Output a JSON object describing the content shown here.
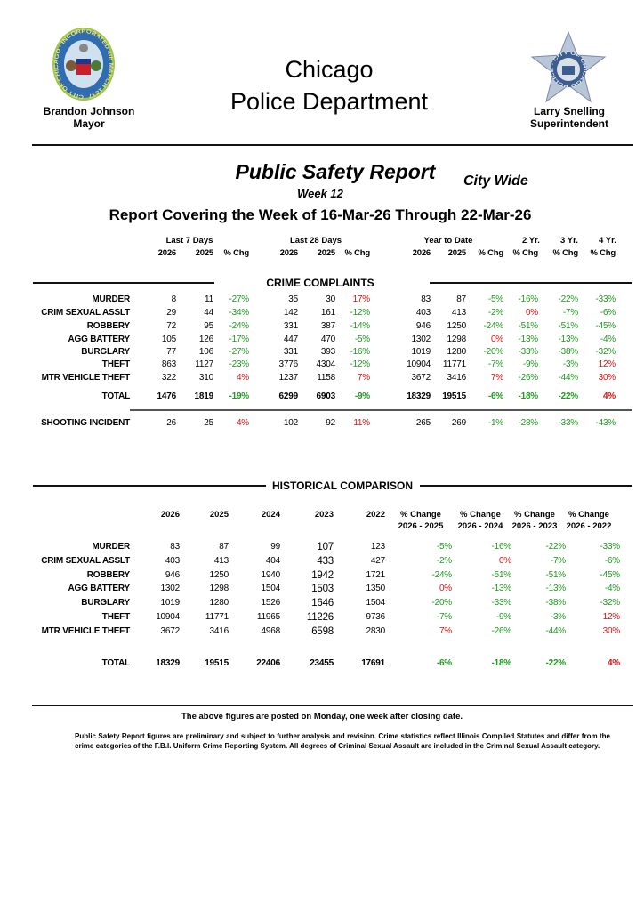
{
  "header": {
    "title_line1": "Chicago",
    "title_line2": "Police Department",
    "mayor_name": "Brandon Johnson",
    "mayor_title": "Mayor",
    "supt_name": "Larry Snelling",
    "supt_title": "Superintendent",
    "city_seal_text": "CITY OF CHICAGO · INCORPORATED 4th MARCH 1837",
    "star_text": "POLICE · CITY OF CHICAGO"
  },
  "report": {
    "title": "Public Safety Report",
    "scope": "City Wide",
    "week": "Week 12",
    "covering": "Report Covering the Week of 16-Mar-26 Through 22-Mar-26"
  },
  "colors": {
    "decrease": "#1e9a1e",
    "increase": "#e01010"
  },
  "complaints": {
    "group_headers": [
      "Last 7 Days",
      "Last 28 Days",
      "Year to Date",
      "2 Yr.",
      "3 Yr.",
      "4 Yr."
    ],
    "col_headers": [
      "2026",
      "2025",
      "% Chg",
      "2026",
      "2025",
      "% Chg",
      "2026",
      "2025",
      "% Chg",
      "% Chg",
      "% Chg",
      "% Chg"
    ],
    "section_title": "CRIME COMPLAINTS",
    "rows": [
      {
        "label": "MURDER",
        "values": [
          "8",
          "11",
          "-27%",
          "35",
          "30",
          "17%",
          "83",
          "87",
          "-5%",
          "-16%",
          "-22%",
          "-33%"
        ]
      },
      {
        "label": "CRIM SEXUAL ASSLT",
        "values": [
          "29",
          "44",
          "-34%",
          "142",
          "161",
          "-12%",
          "403",
          "413",
          "-2%",
          "0%",
          "-7%",
          "-6%"
        ]
      },
      {
        "label": "ROBBERY",
        "values": [
          "72",
          "95",
          "-24%",
          "331",
          "387",
          "-14%",
          "946",
          "1250",
          "-24%",
          "-51%",
          "-51%",
          "-45%"
        ]
      },
      {
        "label": "AGG BATTERY",
        "values": [
          "105",
          "126",
          "-17%",
          "447",
          "470",
          "-5%",
          "1302",
          "1298",
          "0%",
          "-13%",
          "-13%",
          "-4%"
        ]
      },
      {
        "label": "BURGLARY",
        "values": [
          "77",
          "106",
          "-27%",
          "331",
          "393",
          "-16%",
          "1019",
          "1280",
          "-20%",
          "-33%",
          "-38%",
          "-32%"
        ]
      },
      {
        "label": "THEFT",
        "values": [
          "863",
          "1127",
          "-23%",
          "3776",
          "4304",
          "-12%",
          "10904",
          "11771",
          "-7%",
          "-9%",
          "-3%",
          "12%"
        ]
      },
      {
        "label": "MTR VEHICLE THEFT",
        "values": [
          "322",
          "310",
          "4%",
          "1237",
          "1158",
          "7%",
          "3672",
          "3416",
          "7%",
          "-26%",
          "-44%",
          "30%"
        ]
      }
    ],
    "total": {
      "label": "TOTAL",
      "values": [
        "1476",
        "1819",
        "-19%",
        "6299",
        "6903",
        "-9%",
        "18329",
        "19515",
        "-6%",
        "-18%",
        "-22%",
        "4%"
      ]
    },
    "shooting": {
      "label": "SHOOTING INCIDENT",
      "values": [
        "26",
        "25",
        "4%",
        "102",
        "92",
        "11%",
        "265",
        "269",
        "-1%",
        "-28%",
        "-33%",
        "-43%"
      ]
    }
  },
  "historical": {
    "section_title": "HISTORICAL COMPARISON",
    "col_headers": [
      [
        "2026"
      ],
      [
        "2025"
      ],
      [
        "2024"
      ],
      [
        "2023"
      ],
      [
        "2022"
      ],
      [
        "% Change",
        "2026 - 2025"
      ],
      [
        "% Change",
        "2026 - 2024"
      ],
      [
        "% Change",
        "2026 - 2023"
      ],
      [
        "% Change",
        "2026 - 2022"
      ]
    ],
    "rows": [
      {
        "label": "MURDER",
        "values": [
          "83",
          "87",
          "99",
          "107",
          "123",
          "-5%",
          "-16%",
          "-22%",
          "-33%"
        ]
      },
      {
        "label": "CRIM SEXUAL ASSLT",
        "values": [
          "403",
          "413",
          "404",
          "433",
          "427",
          "-2%",
          "0%",
          "-7%",
          "-6%"
        ]
      },
      {
        "label": "ROBBERY",
        "values": [
          "946",
          "1250",
          "1940",
          "1942",
          "1721",
          "-24%",
          "-51%",
          "-51%",
          "-45%"
        ]
      },
      {
        "label": "AGG BATTERY",
        "values": [
          "1302",
          "1298",
          "1504",
          "1503",
          "1350",
          "0%",
          "-13%",
          "-13%",
          "-4%"
        ]
      },
      {
        "label": "BURGLARY",
        "values": [
          "1019",
          "1280",
          "1526",
          "1646",
          "1504",
          "-20%",
          "-33%",
          "-38%",
          "-32%"
        ]
      },
      {
        "label": "THEFT",
        "values": [
          "10904",
          "11771",
          "11965",
          "11226",
          "9736",
          "-7%",
          "-9%",
          "-3%",
          "12%"
        ]
      },
      {
        "label": "MTR VEHICLE THEFT",
        "values": [
          "3672",
          "3416",
          "4968",
          "6598",
          "2830",
          "7%",
          "-26%",
          "-44%",
          "30%"
        ]
      }
    ],
    "total": {
      "label": "TOTAL",
      "values": [
        "18329",
        "19515",
        "22406",
        "23455",
        "17691",
        "-6%",
        "-18%",
        "-22%",
        "4%"
      ]
    }
  },
  "footer": {
    "posting_note": "The above figures are posted on Monday, one week after closing date.",
    "disclaimer": "Public Safety Report figures are preliminary and subject to further analysis and revision.  Crime statistics reflect Illinois Compiled Statutes and differ from the crime categories of the F.B.I. Uniform Crime Reporting System.  All degrees of Criminal Sexual Assault are included in the Criminal Sexual Assault category."
  }
}
